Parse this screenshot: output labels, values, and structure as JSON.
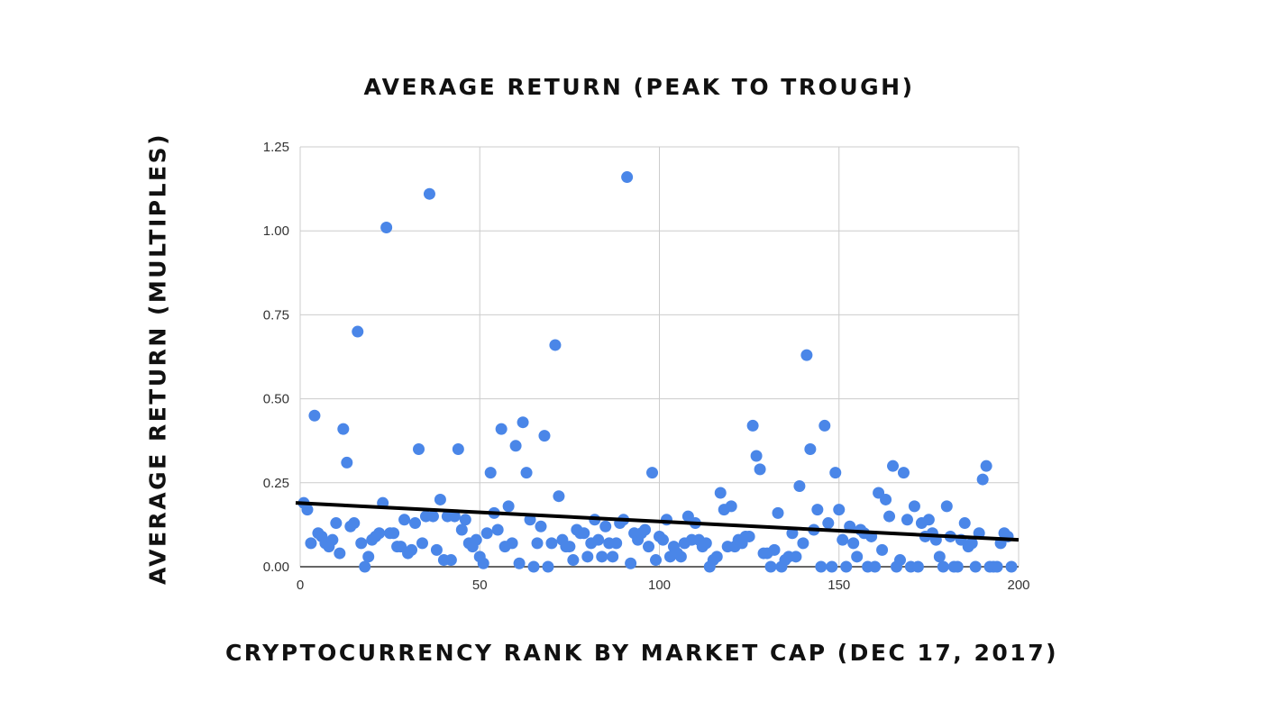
{
  "chart_data": {
    "type": "scatter",
    "title": "AVERAGE RETURN (PEAK TO TROUGH)",
    "xlabel": "CRYPTOCURRENCY RANK BY MARKET CAP (DEC 17, 2017)",
    "ylabel": "AVERAGE RETURN (MULTIPLES)",
    "xlim": [
      0,
      200
    ],
    "ylim": [
      0,
      1.25
    ],
    "x_ticks": [
      0,
      50,
      100,
      150,
      200
    ],
    "x_tick_labels": [
      "0",
      "50",
      "100",
      "150",
      "200"
    ],
    "y_ticks": [
      0,
      0.25,
      0.5,
      0.75,
      1.0,
      1.25
    ],
    "y_tick_labels": [
      "0.00",
      "0.25",
      "0.50",
      "0.75",
      "1.00",
      "1.25"
    ],
    "grid": true,
    "point_color": "#4a86e8",
    "trendline_color": "#000000",
    "trendline": {
      "x": [
        0,
        200
      ],
      "y": [
        0.19,
        0.08
      ]
    },
    "points": [
      [
        1,
        0.19
      ],
      [
        2,
        0.17
      ],
      [
        3,
        0.07
      ],
      [
        4,
        0.45
      ],
      [
        5,
        0.1
      ],
      [
        6,
        0.09
      ],
      [
        7,
        0.07
      ],
      [
        8,
        0.06
      ],
      [
        9,
        0.08
      ],
      [
        10,
        0.13
      ],
      [
        11,
        0.04
      ],
      [
        12,
        0.41
      ],
      [
        13,
        0.31
      ],
      [
        14,
        0.12
      ],
      [
        15,
        0.13
      ],
      [
        16,
        0.7
      ],
      [
        17,
        0.07
      ],
      [
        18,
        0.0
      ],
      [
        19,
        0.03
      ],
      [
        20,
        0.08
      ],
      [
        21,
        0.09
      ],
      [
        22,
        0.1
      ],
      [
        23,
        0.19
      ],
      [
        24,
        1.01
      ],
      [
        25,
        0.1
      ],
      [
        26,
        0.1
      ],
      [
        27,
        0.06
      ],
      [
        28,
        0.06
      ],
      [
        29,
        0.14
      ],
      [
        30,
        0.04
      ],
      [
        31,
        0.05
      ],
      [
        32,
        0.13
      ],
      [
        33,
        0.35
      ],
      [
        34,
        0.07
      ],
      [
        35,
        0.15
      ],
      [
        36,
        1.11
      ],
      [
        37,
        0.15
      ],
      [
        38,
        0.05
      ],
      [
        39,
        0.2
      ],
      [
        40,
        0.02
      ],
      [
        41,
        0.15
      ],
      [
        42,
        0.02
      ],
      [
        43,
        0.15
      ],
      [
        44,
        0.35
      ],
      [
        45,
        0.11
      ],
      [
        46,
        0.14
      ],
      [
        47,
        0.07
      ],
      [
        48,
        0.06
      ],
      [
        49,
        0.08
      ],
      [
        50,
        0.03
      ],
      [
        51,
        0.01
      ],
      [
        52,
        0.1
      ],
      [
        53,
        0.28
      ],
      [
        54,
        0.16
      ],
      [
        55,
        0.11
      ],
      [
        56,
        0.41
      ],
      [
        57,
        0.06
      ],
      [
        58,
        0.18
      ],
      [
        59,
        0.07
      ],
      [
        60,
        0.36
      ],
      [
        61,
        0.01
      ],
      [
        62,
        0.43
      ],
      [
        63,
        0.28
      ],
      [
        64,
        0.14
      ],
      [
        65,
        0.0
      ],
      [
        66,
        0.07
      ],
      [
        67,
        0.12
      ],
      [
        68,
        0.39
      ],
      [
        69,
        0.0
      ],
      [
        70,
        0.07
      ],
      [
        71,
        0.66
      ],
      [
        72,
        0.21
      ],
      [
        73,
        0.08
      ],
      [
        74,
        0.06
      ],
      [
        75,
        0.06
      ],
      [
        76,
        0.02
      ],
      [
        77,
        0.11
      ],
      [
        78,
        0.1
      ],
      [
        79,
        0.1
      ],
      [
        80,
        0.03
      ],
      [
        81,
        0.07
      ],
      [
        82,
        0.14
      ],
      [
        83,
        0.08
      ],
      [
        84,
        0.03
      ],
      [
        85,
        0.12
      ],
      [
        86,
        0.07
      ],
      [
        87,
        0.03
      ],
      [
        88,
        0.07
      ],
      [
        89,
        0.13
      ],
      [
        90,
        0.14
      ],
      [
        91,
        1.16
      ],
      [
        92,
        0.01
      ],
      [
        93,
        0.1
      ],
      [
        94,
        0.08
      ],
      [
        95,
        0.1
      ],
      [
        96,
        0.11
      ],
      [
        97,
        0.06
      ],
      [
        98,
        0.28
      ],
      [
        99,
        0.02
      ],
      [
        100,
        0.09
      ],
      [
        101,
        0.08
      ],
      [
        102,
        0.14
      ],
      [
        103,
        0.03
      ],
      [
        104,
        0.06
      ],
      [
        105,
        0.04
      ],
      [
        106,
        0.03
      ],
      [
        107,
        0.07
      ],
      [
        108,
        0.15
      ],
      [
        109,
        0.08
      ],
      [
        110,
        0.13
      ],
      [
        111,
        0.08
      ],
      [
        112,
        0.06
      ],
      [
        113,
        0.07
      ],
      [
        114,
        0.0
      ],
      [
        115,
        0.02
      ],
      [
        116,
        0.03
      ],
      [
        117,
        0.22
      ],
      [
        118,
        0.17
      ],
      [
        119,
        0.06
      ],
      [
        120,
        0.18
      ],
      [
        121,
        0.06
      ],
      [
        122,
        0.08
      ],
      [
        123,
        0.07
      ],
      [
        124,
        0.09
      ],
      [
        125,
        0.09
      ],
      [
        126,
        0.42
      ],
      [
        127,
        0.33
      ],
      [
        128,
        0.29
      ],
      [
        129,
        0.04
      ],
      [
        130,
        0.04
      ],
      [
        131,
        0.0
      ],
      [
        132,
        0.05
      ],
      [
        133,
        0.16
      ],
      [
        134,
        0.0
      ],
      [
        135,
        0.02
      ],
      [
        136,
        0.03
      ],
      [
        137,
        0.1
      ],
      [
        138,
        0.03
      ],
      [
        139,
        0.24
      ],
      [
        140,
        0.07
      ],
      [
        141,
        0.63
      ],
      [
        142,
        0.35
      ],
      [
        143,
        0.11
      ],
      [
        144,
        0.17
      ],
      [
        145,
        0.0
      ],
      [
        146,
        0.42
      ],
      [
        147,
        0.13
      ],
      [
        148,
        0.0
      ],
      [
        149,
        0.28
      ],
      [
        150,
        0.17
      ],
      [
        151,
        0.08
      ],
      [
        152,
        0.0
      ],
      [
        153,
        0.12
      ],
      [
        154,
        0.07
      ],
      [
        155,
        0.03
      ],
      [
        156,
        0.11
      ],
      [
        157,
        0.1
      ],
      [
        158,
        0.0
      ],
      [
        159,
        0.09
      ],
      [
        160,
        0.0
      ],
      [
        161,
        0.22
      ],
      [
        162,
        0.05
      ],
      [
        163,
        0.2
      ],
      [
        164,
        0.15
      ],
      [
        165,
        0.3
      ],
      [
        166,
        0.0
      ],
      [
        167,
        0.02
      ],
      [
        168,
        0.28
      ],
      [
        169,
        0.14
      ],
      [
        170,
        0.0
      ],
      [
        171,
        0.18
      ],
      [
        172,
        0.0
      ],
      [
        173,
        0.13
      ],
      [
        174,
        0.09
      ],
      [
        175,
        0.14
      ],
      [
        176,
        0.1
      ],
      [
        177,
        0.08
      ],
      [
        178,
        0.03
      ],
      [
        179,
        0.0
      ],
      [
        180,
        0.18
      ],
      [
        181,
        0.09
      ],
      [
        182,
        0.0
      ],
      [
        183,
        0.0
      ],
      [
        184,
        0.08
      ],
      [
        185,
        0.13
      ],
      [
        186,
        0.06
      ],
      [
        187,
        0.07
      ],
      [
        188,
        0.0
      ],
      [
        189,
        0.1
      ],
      [
        190,
        0.26
      ],
      [
        191,
        0.3
      ],
      [
        192,
        0.0
      ],
      [
        193,
        0.0
      ],
      [
        194,
        0.0
      ],
      [
        195,
        0.07
      ],
      [
        196,
        0.1
      ],
      [
        197,
        0.09
      ],
      [
        198,
        0.0
      ]
    ]
  }
}
